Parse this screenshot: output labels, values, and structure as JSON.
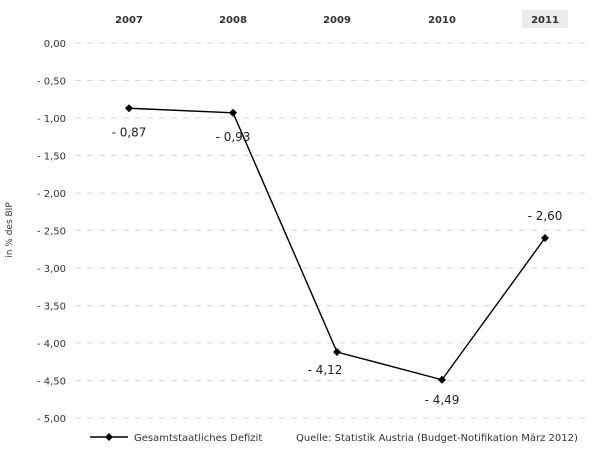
{
  "chart_data": {
    "type": "line",
    "categories": [
      "2007",
      "2008",
      "2009",
      "2010",
      "2011"
    ],
    "series": [
      {
        "name": "Gesamtstaatliches Defizit",
        "values": [
          -0.87,
          -0.93,
          -4.12,
          -4.49,
          -2.6
        ],
        "labels": [
          "- 0,87",
          "- 0,93",
          "- 4,12",
          "- 4,49",
          "- 2,60"
        ]
      }
    ],
    "ylabel": "in % des BIP",
    "ylim": [
      -5.0,
      0.0
    ],
    "yticks": [
      0.0,
      -0.5,
      -1.0,
      -1.5,
      -2.0,
      -2.5,
      -3.0,
      -3.5,
      -4.0,
      -4.5,
      -5.0
    ],
    "ytick_labels": [
      "0,00",
      "- 0,50",
      "- 1,00",
      "- 1,50",
      "- 2,00",
      "- 2,50",
      "- 3,00",
      "- 3,50",
      "- 4,00",
      "- 4,50",
      "- 5,00"
    ],
    "grid": true,
    "legend_position": "bottom-left",
    "source": "Quelle: Statistik Austria (Budget-Notifikation März 2012)",
    "line_color": "#000000",
    "highlight_category": "2011",
    "highlight_color": "#ebebeb"
  }
}
